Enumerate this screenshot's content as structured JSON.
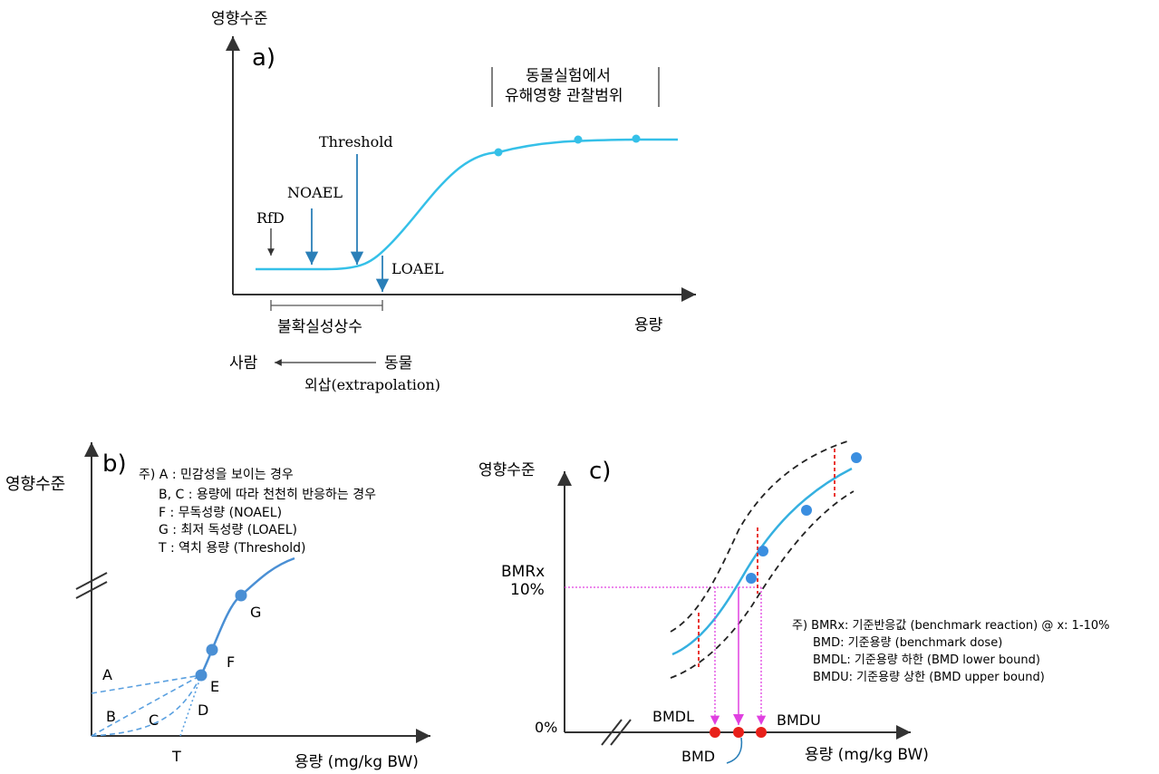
{
  "panel_a": {
    "label": "a)",
    "y_axis": "영향수준",
    "x_axis": "용량",
    "range_line1": "동물실험에서",
    "range_line2": "유해영향 관찰범위",
    "threshold": "Threshold",
    "noael": "NOAEL",
    "rfd": "RfD",
    "loael": "LOAEL",
    "uncertainty": "불확실성상수",
    "human": "사람",
    "animal": "동물",
    "extrapolation": "외삽(extrapolation)",
    "colors": {
      "curve": "#35c0e8",
      "arrow": "#2a7fb8",
      "axis": "#333333"
    }
  },
  "panel_b": {
    "label": "b)",
    "y_axis": "영향수준",
    "x_axis": "용량 (mg/kg BW)",
    "note_lines": [
      "주) A : 민감성을 보이는 경우",
      "B, C : 용량에 따라 천천히 반응하는 경우",
      "F : 무독성량 (NOAEL)",
      "G : 최저 독성량 (LOAEL)",
      "T : 역치 용량 (Threshold)"
    ],
    "points": {
      "A": "A",
      "B": "B",
      "C": "C",
      "D": "D",
      "E": "E",
      "F": "F",
      "G": "G",
      "T": "T"
    },
    "colors": {
      "curve": "#4a8fd4",
      "dashed": "#5aa0e0"
    }
  },
  "panel_c": {
    "label": "c)",
    "y_axis": "영향수준",
    "x_axis": "용량 (mg/kg BW)",
    "bmr": "BMRx",
    "bmr_pct": "10%",
    "zero": "0%",
    "bmdl": "BMDL",
    "bmdu": "BMDU",
    "bmd": "BMD",
    "note_lines": [
      "주) BMRx: 기준반응값 (benchmark reaction) @ x: 1-10%",
      "BMD: 기준용량 (benchmark dose)",
      "BMDL: 기준용량 하한 (BMD lower bound)",
      "BMDU: 기준용량 상한 (BMD upper bound)"
    ],
    "colors": {
      "curve": "#35b0e0",
      "bound": "#222222",
      "marker": "#e8201a",
      "guide": "#e040e0",
      "point": "#3a8ee0"
    }
  }
}
